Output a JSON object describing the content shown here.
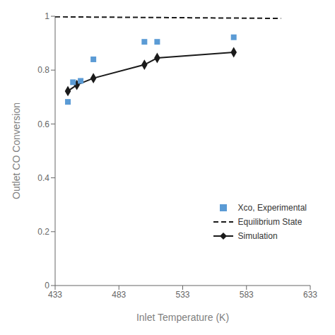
{
  "chart_data": {
    "type": "line",
    "xlabel": "Inlet Temperature (K)",
    "ylabel": "Outlet CO Conversion",
    "xlim": [
      433,
      633
    ],
    "xticks": [
      433,
      483,
      533,
      583,
      633
    ],
    "ylim": [
      0,
      1
    ],
    "yticks": [
      0,
      0.2,
      0.4,
      0.6,
      0.8,
      1
    ],
    "grid": false,
    "legend": "lower right",
    "series": [
      {
        "name": "Xco, Experimental",
        "type": "scatter",
        "color": "#5b9bd5",
        "marker": "square",
        "line_style": "none",
        "x": [
          443,
          447,
          453,
          463,
          503,
          513,
          573
        ],
        "values": [
          0.682,
          0.755,
          0.76,
          0.84,
          0.905,
          0.905,
          0.922
        ]
      },
      {
        "name": "Equilibrium State",
        "type": "line",
        "color": "#1a1a1a",
        "marker": "none",
        "line_style": "dashed",
        "x": [
          433,
          610
        ],
        "values": [
          0.998,
          0.992
        ]
      },
      {
        "name": "Simulation",
        "type": "line",
        "color": "#1a1a1a",
        "marker": "diamond",
        "line_style": "solid",
        "x": [
          443,
          450,
          463,
          503,
          513,
          573
        ],
        "values": [
          0.722,
          0.745,
          0.77,
          0.82,
          0.845,
          0.866
        ]
      }
    ]
  }
}
